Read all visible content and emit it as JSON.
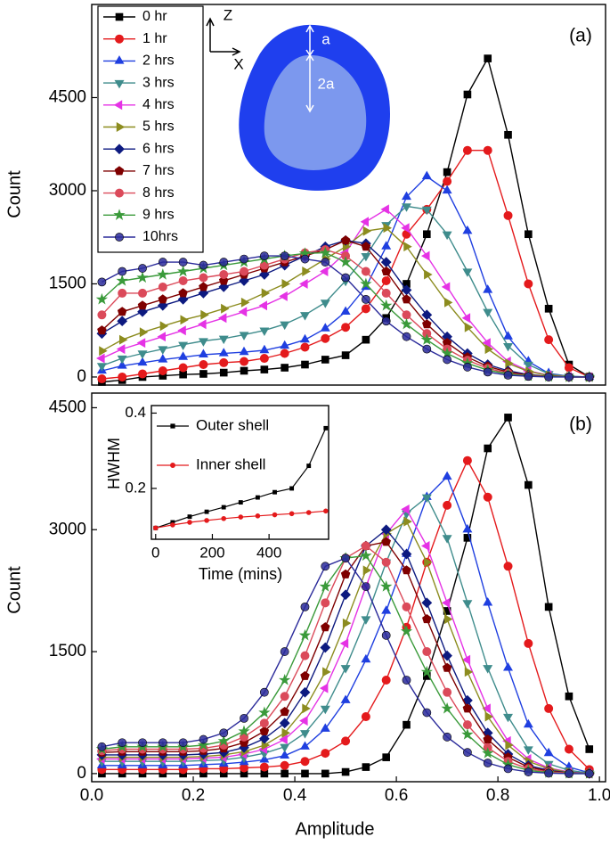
{
  "chart_data": [
    {
      "type": "line",
      "label": "(a)",
      "ylabel": "Count",
      "annotations": [
        "Z",
        "X",
        "a",
        "2a"
      ],
      "x": [
        0.02,
        0.06,
        0.1,
        0.14,
        0.18,
        0.22,
        0.26,
        0.3,
        0.34,
        0.38,
        0.42,
        0.46,
        0.5,
        0.54,
        0.58,
        0.62,
        0.66,
        0.7,
        0.74,
        0.78,
        0.82,
        0.86,
        0.9,
        0.94,
        0.98
      ],
      "xlim": [
        0,
        1.012
      ],
      "ylim": [
        -130,
        6000
      ],
      "yticks": [
        0,
        1500,
        3000,
        4500
      ],
      "legend": "upper left",
      "series": [
        {
          "name": "0 hr",
          "color": "#000000",
          "marker": "square",
          "values": [
            -80,
            -50,
            0,
            20,
            40,
            50,
            70,
            100,
            120,
            150,
            200,
            280,
            350,
            600,
            950,
            1500,
            2300,
            3300,
            4550,
            5130,
            3900,
            2300,
            1100,
            200,
            0
          ]
        },
        {
          "name": "1 hr",
          "color": "#e41a1c",
          "marker": "circle",
          "values": [
            -30,
            0,
            50,
            100,
            150,
            200,
            230,
            250,
            300,
            380,
            480,
            620,
            800,
            1100,
            1550,
            2300,
            2700,
            3150,
            3650,
            3650,
            2600,
            1500,
            600,
            150,
            0
          ]
        },
        {
          "name": "2 hrs",
          "color": "#1f3fe0",
          "marker": "triangle-up",
          "values": [
            100,
            180,
            230,
            280,
            320,
            360,
            380,
            400,
            430,
            500,
            600,
            780,
            1050,
            1450,
            2100,
            2900,
            3230,
            3000,
            2350,
            1400,
            650,
            250,
            60,
            10,
            0
          ]
        },
        {
          "name": "3 hrs",
          "color": "#3f8c8c",
          "marker": "triangle-down",
          "values": [
            180,
            300,
            380,
            450,
            520,
            580,
            620,
            680,
            750,
            850,
            1000,
            1200,
            1550,
            1950,
            2450,
            2750,
            2700,
            2300,
            1700,
            1050,
            500,
            200,
            50,
            10,
            0
          ]
        },
        {
          "name": "4 hrs",
          "color": "#e532e5",
          "marker": "triangle-left",
          "values": [
            300,
            450,
            550,
            650,
            750,
            850,
            950,
            1050,
            1150,
            1300,
            1500,
            1700,
            2000,
            2500,
            2700,
            2400,
            1950,
            1450,
            950,
            550,
            250,
            100,
            30,
            5,
            0
          ]
        },
        {
          "name": "5 hrs",
          "color": "#8c8c1f",
          "marker": "triangle-right",
          "values": [
            420,
            600,
            720,
            820,
            920,
            1000,
            1100,
            1200,
            1350,
            1500,
            1700,
            1900,
            2100,
            2350,
            2400,
            2100,
            1650,
            1200,
            800,
            450,
            220,
            90,
            25,
            5,
            0
          ]
        },
        {
          "name": "6 hrs",
          "color": "#0d1a80",
          "marker": "diamond",
          "values": [
            700,
            900,
            1050,
            1150,
            1250,
            1350,
            1450,
            1550,
            1650,
            1800,
            1950,
            2100,
            2200,
            2150,
            1850,
            1400,
            1000,
            650,
            380,
            200,
            100,
            40,
            10,
            0,
            0
          ]
        },
        {
          "name": "7 hrs",
          "color": "#7f0000",
          "marker": "pentagon",
          "values": [
            750,
            1050,
            1150,
            1250,
            1350,
            1450,
            1550,
            1650,
            1750,
            1850,
            1950,
            2050,
            2200,
            2100,
            1700,
            1250,
            850,
            550,
            320,
            170,
            80,
            30,
            10,
            0,
            0
          ]
        },
        {
          "name": "8 hrs",
          "color": "#db4a5a",
          "marker": "circle",
          "values": [
            1000,
            1350,
            1350,
            1450,
            1550,
            1600,
            1650,
            1700,
            1800,
            1900,
            2000,
            2050,
            1950,
            1700,
            1350,
            1000,
            700,
            450,
            270,
            140,
            60,
            20,
            5,
            0,
            0
          ]
        },
        {
          "name": "9 hrs",
          "color": "#3a9a3a",
          "marker": "star",
          "values": [
            1250,
            1550,
            1600,
            1650,
            1700,
            1750,
            1800,
            1850,
            1900,
            1950,
            1990,
            2000,
            1850,
            1500,
            1150,
            850,
            600,
            380,
            220,
            110,
            50,
            15,
            5,
            0,
            0
          ]
        },
        {
          "name": "10hrs",
          "color": "#2a2a9a",
          "marker": "sphere",
          "values": [
            1530,
            1700,
            1750,
            1850,
            1850,
            1800,
            1850,
            1900,
            1950,
            1950,
            1900,
            1850,
            1600,
            1250,
            900,
            650,
            450,
            280,
            160,
            80,
            30,
            10,
            0,
            0,
            0
          ]
        }
      ]
    },
    {
      "type": "line",
      "label": "(b)",
      "ylabel": "Count",
      "xlabel": "Amplitude",
      "x": [
        0.02,
        0.06,
        0.1,
        0.14,
        0.18,
        0.22,
        0.26,
        0.3,
        0.34,
        0.38,
        0.42,
        0.46,
        0.5,
        0.54,
        0.58,
        0.62,
        0.66,
        0.7,
        0.74,
        0.78,
        0.82,
        0.86,
        0.9,
        0.94,
        0.98
      ],
      "xlim": [
        0,
        1.012
      ],
      "ylim": [
        -100,
        4680
      ],
      "xticks": [
        {
          "value": 0,
          "label": "0.0"
        },
        0.2,
        0.4,
        0.6,
        0.8,
        {
          "value": 1,
          "label": "1.0"
        }
      ],
      "yticks": [
        0,
        1500,
        3000,
        4500
      ],
      "series": [
        {
          "color": "#000000",
          "marker": "square",
          "values": [
            0,
            0,
            0,
            0,
            0,
            0,
            0,
            0,
            0,
            0,
            0,
            0,
            20,
            80,
            200,
            600,
            1200,
            2000,
            2900,
            4000,
            4380,
            3550,
            2050,
            950,
            300
          ]
        },
        {
          "color": "#e41a1c",
          "marker": "circle",
          "values": [
            50,
            50,
            50,
            50,
            50,
            60,
            60,
            70,
            80,
            100,
            150,
            250,
            400,
            700,
            1150,
            1800,
            2600,
            3300,
            3850,
            3400,
            2550,
            1600,
            800,
            300,
            50
          ]
        },
        {
          "color": "#1f3fe0",
          "marker": "triangle-up",
          "values": [
            100,
            100,
            100,
            100,
            100,
            110,
            120,
            140,
            170,
            220,
            330,
            550,
            900,
            1400,
            2000,
            2700,
            3400,
            3650,
            3000,
            2100,
            1300,
            600,
            250,
            80,
            10
          ]
        },
        {
          "color": "#3f8c8c",
          "marker": "triangle-down",
          "values": [
            150,
            150,
            150,
            150,
            150,
            160,
            170,
            200,
            250,
            330,
            500,
            800,
            1300,
            1900,
            2600,
            3200,
            3400,
            2900,
            2100,
            1300,
            700,
            300,
            120,
            40,
            5
          ]
        },
        {
          "color": "#e532e5",
          "marker": "triangle-left",
          "values": [
            180,
            180,
            180,
            180,
            180,
            190,
            200,
            240,
            300,
            420,
            650,
            1050,
            1600,
            2300,
            2950,
            3250,
            2800,
            2100,
            1400,
            800,
            400,
            180,
            70,
            20,
            0
          ]
        },
        {
          "color": "#8c8c1f",
          "marker": "triangle-right",
          "values": [
            200,
            200,
            200,
            200,
            200,
            210,
            230,
            270,
            350,
            500,
            800,
            1250,
            1850,
            2500,
            2950,
            3100,
            2600,
            1900,
            1250,
            700,
            350,
            150,
            60,
            15,
            0
          ]
        },
        {
          "color": "#0d1a80",
          "marker": "diamond",
          "values": [
            230,
            230,
            230,
            230,
            230,
            240,
            260,
            320,
            430,
            620,
            1000,
            1550,
            2200,
            2800,
            3000,
            2700,
            2100,
            1450,
            900,
            500,
            240,
            100,
            40,
            10,
            0
          ]
        },
        {
          "color": "#7f0000",
          "marker": "pentagon",
          "values": [
            260,
            270,
            270,
            270,
            270,
            280,
            310,
            380,
            520,
            760,
            1200,
            1800,
            2450,
            2800,
            2850,
            2500,
            1900,
            1300,
            800,
            420,
            200,
            80,
            30,
            5,
            0
          ]
        },
        {
          "color": "#db4a5a",
          "marker": "circle",
          "values": [
            280,
            300,
            300,
            300,
            300,
            310,
            350,
            450,
            620,
            950,
            1450,
            2100,
            2650,
            2800,
            2600,
            2050,
            1500,
            1000,
            600,
            320,
            150,
            60,
            20,
            5,
            0
          ]
        },
        {
          "color": "#3a9a3a",
          "marker": "star",
          "values": [
            300,
            330,
            330,
            330,
            330,
            350,
            400,
            520,
            750,
            1150,
            1700,
            2300,
            2650,
            2680,
            2300,
            1750,
            1250,
            800,
            480,
            250,
            110,
            40,
            10,
            0,
            0
          ]
        },
        {
          "color": "#2a2a9a",
          "marker": "sphere",
          "values": [
            330,
            380,
            380,
            380,
            380,
            420,
            500,
            680,
            1000,
            1500,
            2050,
            2550,
            2650,
            2300,
            1700,
            1150,
            750,
            450,
            260,
            130,
            60,
            20,
            5,
            0,
            0
          ]
        }
      ]
    },
    {
      "type": "line",
      "xlabel": "Time (mins)",
      "ylabel": "HWHM",
      "x": [
        0,
        60,
        120,
        180,
        240,
        300,
        360,
        420,
        480,
        540,
        600
      ],
      "xlim": [
        -15,
        610
      ],
      "ylim": [
        0.065,
        0.42
      ],
      "xticks": [
        0,
        200,
        400
      ],
      "yticks": [
        0.2,
        0.4
      ],
      "legend": "upper left",
      "series": [
        {
          "name": "Outer shell",
          "color": "#000000",
          "marker": "square",
          "values": [
            0.095,
            0.11,
            0.125,
            0.138,
            0.15,
            0.163,
            0.176,
            0.19,
            0.2,
            0.26,
            0.36
          ]
        },
        {
          "name": "Inner shell",
          "color": "#e41a1c",
          "marker": "circle",
          "values": [
            0.095,
            0.103,
            0.11,
            0.115,
            0.12,
            0.124,
            0.127,
            0.13,
            0.133,
            0.136,
            0.14
          ]
        }
      ]
    }
  ]
}
